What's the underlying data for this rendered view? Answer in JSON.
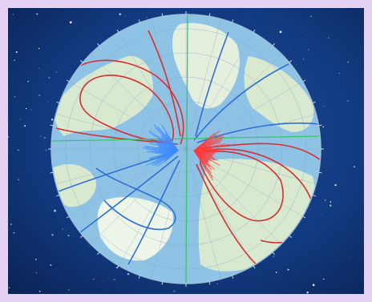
{
  "image": {
    "kind": "polar-projection-map",
    "subject": "magnetic-declination-isolines",
    "background": "starfield",
    "colors": {
      "frame": "#e6d2f5",
      "space": "#0d2a63",
      "ocean": "#8fc3e6",
      "land": "#d8e9d0",
      "positive_isoline": "#d62f2f",
      "negative_isoline": "#2d6fd6",
      "zero_line": "#39c46a",
      "graticule": "#7ea5c7"
    }
  }
}
